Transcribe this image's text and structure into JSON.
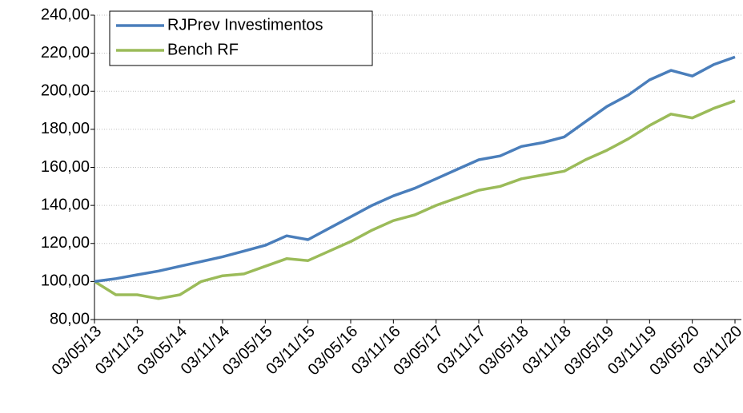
{
  "chart_data": {
    "type": "line",
    "categories": [
      "03/05/13",
      null,
      "03/11/13",
      null,
      "03/05/14",
      null,
      "03/11/14",
      null,
      "03/05/15",
      null,
      "03/11/15",
      null,
      "03/05/16",
      null,
      "03/11/16",
      null,
      "03/05/17",
      null,
      "03/11/17",
      null,
      "03/05/18",
      null,
      "03/11/18",
      null,
      "03/05/19",
      null,
      "03/11/19",
      null,
      "03/05/20",
      null,
      "03/11/20"
    ],
    "series": [
      {
        "name": "RJPrev Investimentos",
        "color": "#4a7ebb",
        "values": [
          100,
          101.5,
          103.5,
          105.5,
          108,
          110.5,
          113,
          116,
          119,
          124,
          122,
          128,
          134,
          140,
          145,
          149,
          154,
          159,
          164,
          166,
          171,
          173,
          176,
          184,
          192,
          198,
          206,
          211,
          208,
          214,
          218
        ]
      },
      {
        "name": "Bench RF",
        "color": "#9bbb59",
        "values": [
          100,
          93,
          93,
          91,
          93,
          100,
          103,
          104,
          108,
          112,
          111,
          116,
          121,
          127,
          132,
          135,
          140,
          144,
          148,
          150,
          154,
          156,
          158,
          164,
          169,
          175,
          182,
          188,
          186,
          191,
          195
        ]
      }
    ],
    "ylim": [
      80,
      240
    ],
    "yticks": [
      {
        "value": 80,
        "label": "80,00"
      },
      {
        "value": 100,
        "label": "100,00"
      },
      {
        "value": 120,
        "label": "120,00"
      },
      {
        "value": 140,
        "label": "140,00"
      },
      {
        "value": 160,
        "label": "160,00"
      },
      {
        "value": 180,
        "label": "180,00"
      },
      {
        "value": 200,
        "label": "200,00"
      },
      {
        "value": 220,
        "label": "220,00"
      },
      {
        "value": 240,
        "label": "240,00"
      }
    ],
    "grid": true,
    "legend": "upper left"
  }
}
